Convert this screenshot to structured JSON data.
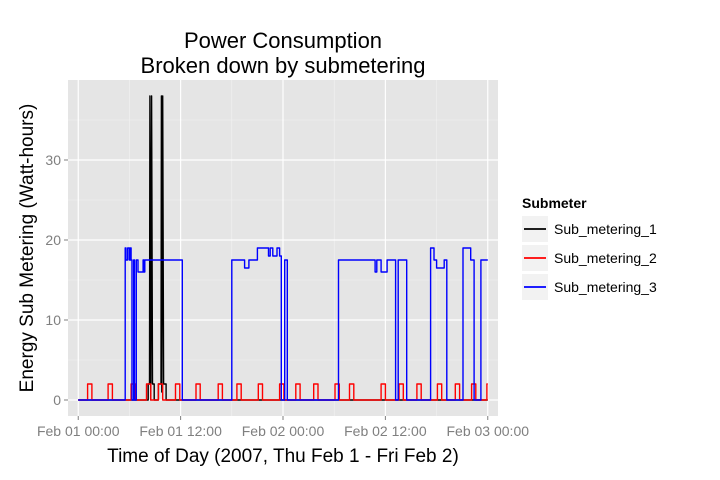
{
  "chart_data": {
    "type": "line",
    "title_lines": [
      "Power Consumption",
      "Broken down by submetering"
    ],
    "xlabel": "Time of Day (2007, Thu Feb 1 - Fri Feb 2)",
    "ylabel": "Energy Sub Metering (Watt-hours)",
    "x_unit": "hour",
    "xlim": [
      -1.2,
      49.2
    ],
    "ylim": [
      -2,
      40
    ],
    "x_ticks": [
      {
        "x": 0,
        "label": "Feb 01 00:00"
      },
      {
        "x": 12,
        "label": "Feb 01 12:00"
      },
      {
        "x": 24,
        "label": "Feb 02 00:00"
      },
      {
        "x": 36,
        "label": "Feb 02 12:00"
      },
      {
        "x": 48,
        "label": "Feb 03 00:00"
      }
    ],
    "y_ticks": [
      0,
      10,
      20,
      30
    ],
    "grid": true,
    "legend": {
      "title": "Submeter",
      "position": "right"
    },
    "series": [
      {
        "name": "Sub_metering_1",
        "color": "#000000",
        "x": [
          0,
          8.2,
          8.2,
          8.35,
          8.4,
          8.5,
          8.6,
          8.7,
          8.75,
          8.9,
          8.9,
          9.4,
          9.4,
          9.7,
          9.75,
          9.8,
          9.9,
          10.0,
          10.05,
          10.3,
          10.3,
          48
        ],
        "y": [
          0,
          0,
          2,
          2,
          38,
          0,
          38,
          2,
          2,
          2,
          0,
          0,
          2,
          2,
          38,
          1,
          38,
          2,
          2,
          2,
          0,
          0
        ]
      },
      {
        "name": "Sub_metering_2",
        "color": "#ff0000",
        "x": [
          0,
          1.1,
          1.1,
          1.6,
          1.6,
          3.5,
          3.5,
          4.0,
          4.0,
          6.2,
          6.2,
          6.7,
          6.7,
          8.0,
          8.0,
          8.5,
          8.5,
          9.4,
          9.4,
          9.9,
          9.9,
          11.4,
          11.4,
          11.9,
          11.9,
          13.8,
          13.8,
          14.3,
          14.3,
          16.4,
          16.4,
          16.9,
          16.9,
          18.6,
          18.6,
          19.1,
          19.1,
          21.1,
          21.1,
          21.6,
          21.6,
          23.6,
          23.6,
          24.1,
          24.1,
          25.5,
          25.5,
          26.0,
          26.0,
          27.6,
          27.6,
          28.1,
          28.1,
          30.1,
          30.1,
          30.6,
          30.6,
          31.8,
          31.8,
          32.3,
          32.3,
          35.5,
          35.5,
          36.0,
          36.0,
          37.6,
          37.6,
          38.1,
          38.1,
          39.7,
          39.7,
          40.2,
          40.2,
          42.1,
          42.1,
          42.6,
          42.6,
          44.2,
          44.2,
          44.7,
          44.7,
          46.1,
          46.1,
          46.6,
          46.6,
          47.9,
          47.9,
          48
        ],
        "y": [
          0,
          0,
          2,
          2,
          0,
          0,
          2,
          2,
          0,
          0,
          2,
          2,
          0,
          0,
          2,
          2,
          0,
          0,
          2,
          2,
          0,
          0,
          2,
          2,
          0,
          0,
          2,
          2,
          0,
          0,
          2,
          2,
          0,
          0,
          2,
          2,
          0,
          0,
          2,
          2,
          0,
          0,
          2,
          2,
          0,
          0,
          2,
          2,
          0,
          0,
          2,
          2,
          0,
          0,
          2,
          2,
          0,
          0,
          2,
          2,
          0,
          0,
          2,
          2,
          0,
          0,
          2,
          2,
          0,
          0,
          2,
          2,
          0,
          0,
          2,
          2,
          0,
          0,
          2,
          2,
          0,
          0,
          2,
          2,
          0,
          0,
          2,
          2
        ]
      },
      {
        "name": "Sub_metering_3",
        "color": "#0000ff",
        "x": [
          0,
          5.5,
          5.5,
          5.6,
          5.6,
          5.8,
          5.8,
          6.0,
          6.0,
          6.1,
          6.1,
          6.2,
          6.2,
          6.3,
          6.3,
          6.5,
          6.5,
          6.6,
          6.6,
          6.8,
          6.8,
          7.0,
          7.0,
          7.6,
          7.6,
          7.7,
          7.7,
          7.8,
          7.8,
          12.2,
          12.2,
          18.0,
          18.0,
          19.5,
          19.5,
          20.0,
          20.0,
          21.0,
          21.0,
          22.3,
          22.3,
          22.5,
          22.5,
          22.8,
          22.8,
          23.3,
          23.3,
          23.6,
          23.6,
          23.8,
          23.8,
          24.2,
          24.2,
          24.5,
          24.5,
          30.5,
          30.5,
          34.8,
          34.8,
          35.0,
          35.0,
          35.5,
          35.5,
          36.2,
          36.2,
          37.2,
          37.2,
          37.5,
          37.5,
          38.5,
          38.5,
          41.3,
          41.3,
          41.7,
          41.7,
          42.0,
          42.0,
          42.9,
          42.9,
          43.2,
          43.2,
          45.1,
          45.1,
          46.0,
          46.0,
          46.4,
          46.4,
          47.2,
          47.2,
          48
        ],
        "y": [
          0,
          0,
          19,
          19,
          17.5,
          17.5,
          19,
          19,
          17.5,
          17.5,
          19,
          19,
          17.5,
          17.5,
          0,
          0,
          17.5,
          17.5,
          0,
          0,
          17.5,
          17.5,
          16,
          16,
          17.5,
          17.5,
          16,
          16,
          17.5,
          17.5,
          0,
          0,
          17.5,
          17.5,
          16.5,
          16.5,
          17.5,
          17.5,
          19,
          19,
          18,
          18,
          19,
          19,
          18,
          18,
          19,
          19,
          18,
          18,
          0,
          0,
          17.5,
          17.5,
          0,
          0,
          17.5,
          17.5,
          16,
          16,
          17.5,
          17.5,
          16,
          16,
          17.5,
          17.5,
          0,
          0,
          17.5,
          17.5,
          0,
          0,
          19,
          19,
          17.5,
          17.5,
          16.5,
          16.5,
          17.5,
          17.5,
          0,
          0,
          19,
          19,
          17.5,
          17.5,
          0,
          0,
          17.5,
          17.5
        ]
      }
    ]
  }
}
